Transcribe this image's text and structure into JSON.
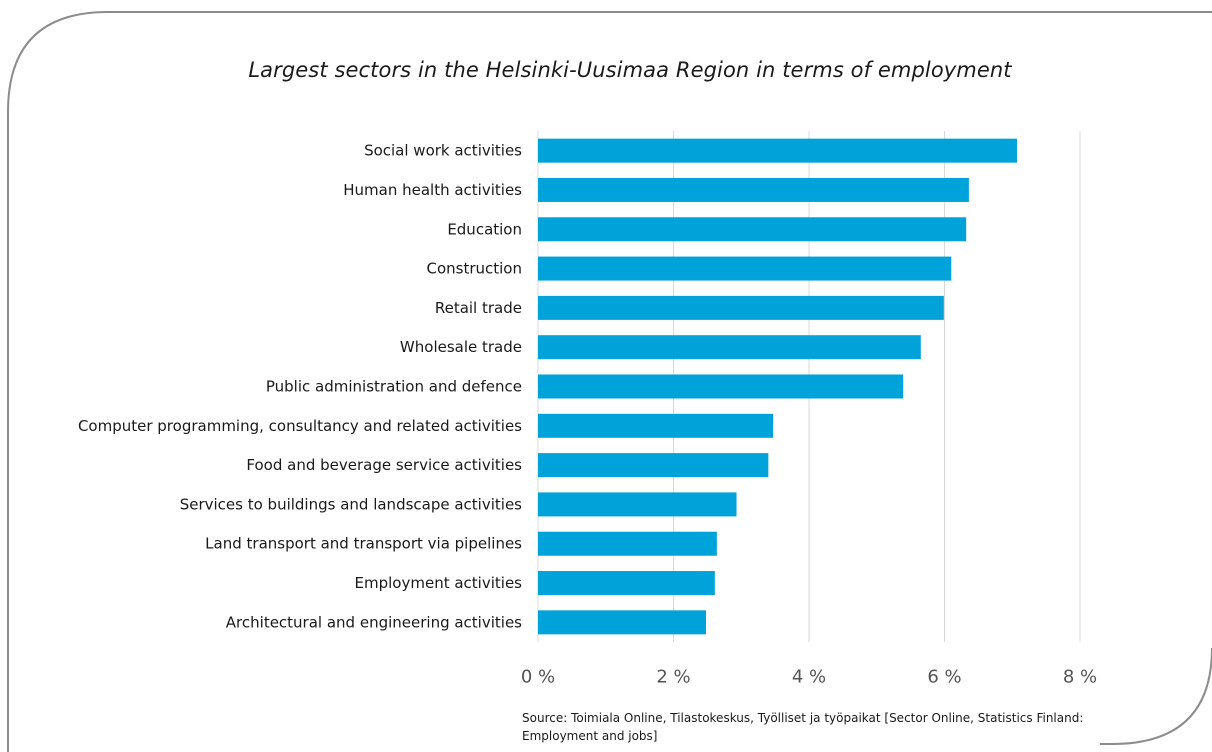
{
  "chart_data": {
    "type": "bar",
    "orientation": "horizontal",
    "title": "Largest sectors in the Helsinki-Uusimaa Region in terms of employment",
    "categories": [
      "Social work activities",
      "Human health activities",
      "Education",
      "Construction",
      "Retail trade",
      "Wholesale trade",
      "Public administration and defence",
      "Computer programming, consultancy and related activities",
      "Food and beverage service activities",
      "Services to buildings and landscape activities",
      "Land transport and transport via pipelines",
      "Employment activities",
      "Architectural and engineering activities"
    ],
    "values": [
      7.07,
      6.36,
      6.32,
      6.1,
      5.99,
      5.65,
      5.39,
      3.47,
      3.4,
      2.93,
      2.64,
      2.61,
      2.48
    ],
    "unit": "%",
    "xlim": [
      0,
      8
    ],
    "xticks": [
      0,
      2,
      4,
      6,
      8
    ],
    "xtick_labels": [
      "0 %",
      "2 %",
      "4 %",
      "6 %",
      "8 %"
    ],
    "grid": "vertical",
    "bar_color": "#00a3d9",
    "grid_color": "#d9d9d9"
  },
  "source": "Source: Toimiala Online, Tilastokeskus, Työlliset ja työpaikat [Sector Online, Statistics Finland: Employment and jobs]"
}
